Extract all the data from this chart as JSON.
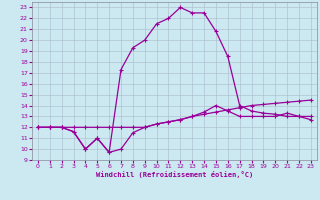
{
  "title": "",
  "xlabel": "Windchill (Refroidissement éolien,°C)",
  "xlim": [
    -0.5,
    23.5
  ],
  "ylim": [
    9,
    23.5
  ],
  "xticks": [
    0,
    1,
    2,
    3,
    4,
    5,
    6,
    7,
    8,
    9,
    10,
    11,
    12,
    13,
    14,
    15,
    16,
    17,
    18,
    19,
    20,
    21,
    22,
    23
  ],
  "yticks": [
    9,
    10,
    11,
    12,
    13,
    14,
    15,
    16,
    17,
    18,
    19,
    20,
    21,
    22,
    23
  ],
  "bg_color": "#cce8f0",
  "line_color": "#990099",
  "grid_color": "#aabbcc",
  "line1_x": [
    0,
    1,
    2,
    3,
    4,
    5,
    6,
    7,
    8,
    9,
    10,
    11,
    12,
    13,
    14,
    15,
    16,
    17,
    18,
    19,
    20,
    21,
    22,
    23
  ],
  "line1_y": [
    12,
    12,
    12,
    11.6,
    10,
    11,
    9.7,
    10,
    11.5,
    12,
    12.3,
    12.5,
    12.7,
    13,
    13.4,
    14,
    13.5,
    13,
    13,
    13,
    13,
    13.3,
    13,
    13
  ],
  "line2_x": [
    0,
    1,
    2,
    3,
    4,
    5,
    6,
    7,
    8,
    9,
    10,
    11,
    12,
    13,
    14,
    15,
    16,
    17,
    18,
    19,
    20,
    21,
    22,
    23
  ],
  "line2_y": [
    12,
    12,
    12,
    12,
    12,
    12,
    12,
    12,
    12,
    12,
    12.3,
    12.5,
    12.7,
    13,
    13.2,
    13.4,
    13.6,
    13.8,
    14,
    14.1,
    14.2,
    14.3,
    14.4,
    14.5
  ],
  "line3_x": [
    0,
    1,
    2,
    3,
    4,
    5,
    6,
    7,
    8,
    9,
    10,
    11,
    12,
    13,
    14,
    15,
    16,
    17,
    18,
    19,
    20,
    21,
    22,
    23
  ],
  "line3_y": [
    12,
    12,
    12,
    11.6,
    10,
    11,
    9.7,
    17.3,
    19.3,
    20,
    21.5,
    22,
    23,
    22.5,
    22.5,
    20.8,
    18.5,
    14,
    13.5,
    13.3,
    13.2,
    13,
    13,
    12.7
  ]
}
